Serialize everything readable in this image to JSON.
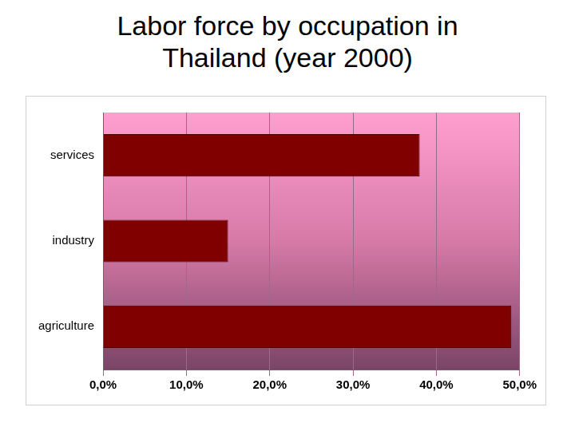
{
  "chart_data": {
    "type": "bar",
    "title": "Labor force by occupation in Thailand (year 2000)",
    "orientation": "horizontal",
    "categories": [
      "services",
      "industry",
      "agriculture"
    ],
    "values": [
      38,
      15,
      49
    ],
    "color": "#800000",
    "xlim": [
      0,
      50
    ],
    "xticks": [
      {
        "value": 0,
        "label": "0,0%"
      },
      {
        "value": 10,
        "label": "10,0%"
      },
      {
        "value": 20,
        "label": "20,0%"
      },
      {
        "value": 30,
        "label": "30,0%"
      },
      {
        "value": 40,
        "label": "40,0%"
      },
      {
        "value": 50,
        "label": "50,0%"
      }
    ],
    "grid": true
  }
}
